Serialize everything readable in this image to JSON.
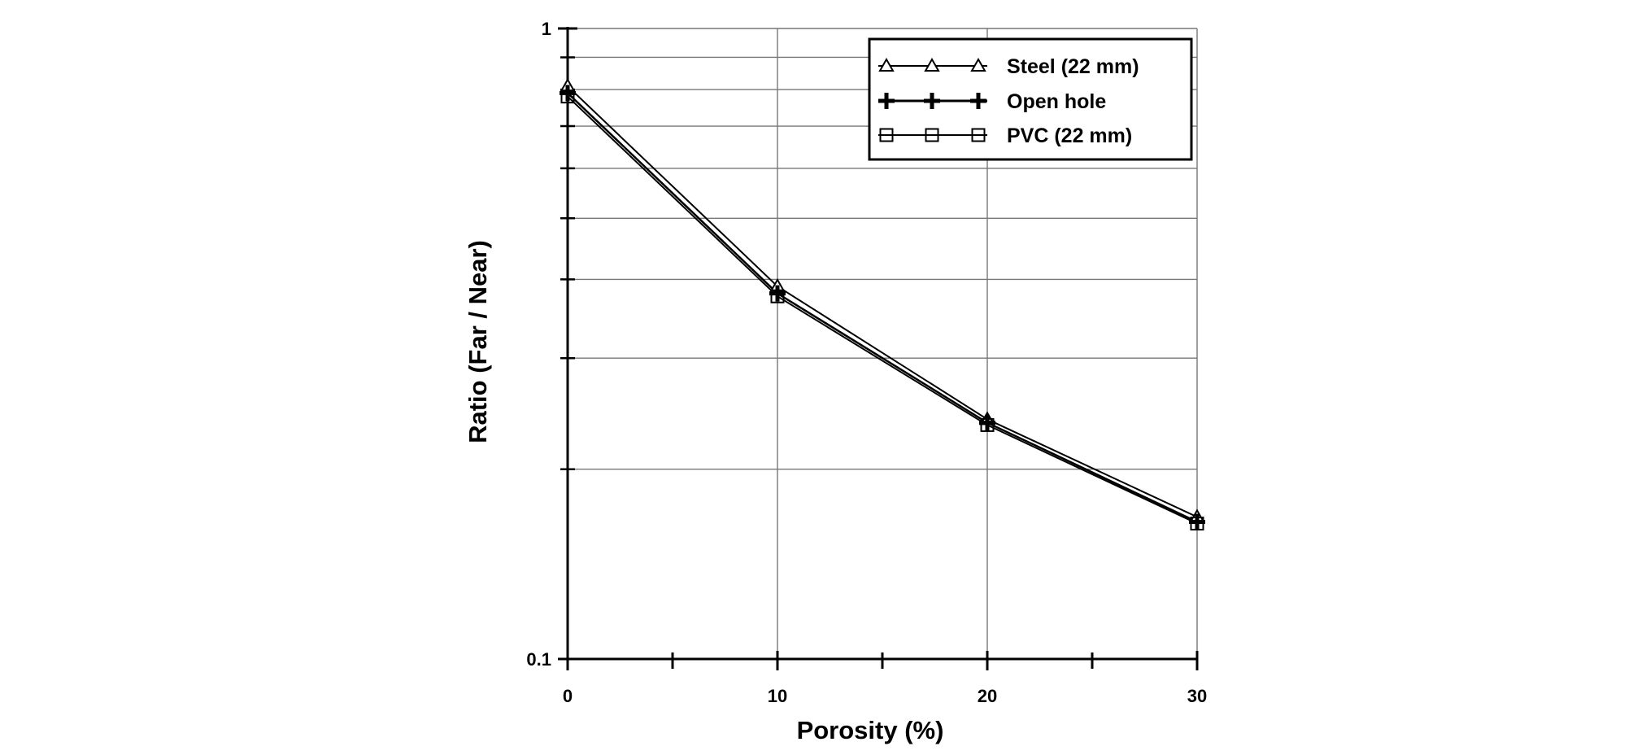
{
  "chart_data": {
    "type": "line",
    "title": "",
    "xlabel": "Porosity (%)",
    "ylabel": "Ratio (Far / Near)",
    "x": [
      0,
      10,
      20,
      30
    ],
    "xlim": [
      0,
      30
    ],
    "ylim": [
      0.1,
      1
    ],
    "yscale": "log",
    "x_ticks": [
      "0",
      "10",
      "20",
      "30"
    ],
    "y_tick_labels": [
      "0.1",
      "1"
    ],
    "grid": true,
    "legend_position": "top-right",
    "series": [
      {
        "name": "Steel (22 mm)",
        "marker": "triangle",
        "values": [
          0.81,
          0.39,
          0.24,
          0.168
        ]
      },
      {
        "name": "Open hole",
        "marker": "plus",
        "values": [
          0.79,
          0.38,
          0.237,
          0.165
        ]
      },
      {
        "name": "PVC (22 mm)",
        "marker": "square",
        "values": [
          0.78,
          0.376,
          0.235,
          0.164
        ]
      }
    ]
  }
}
